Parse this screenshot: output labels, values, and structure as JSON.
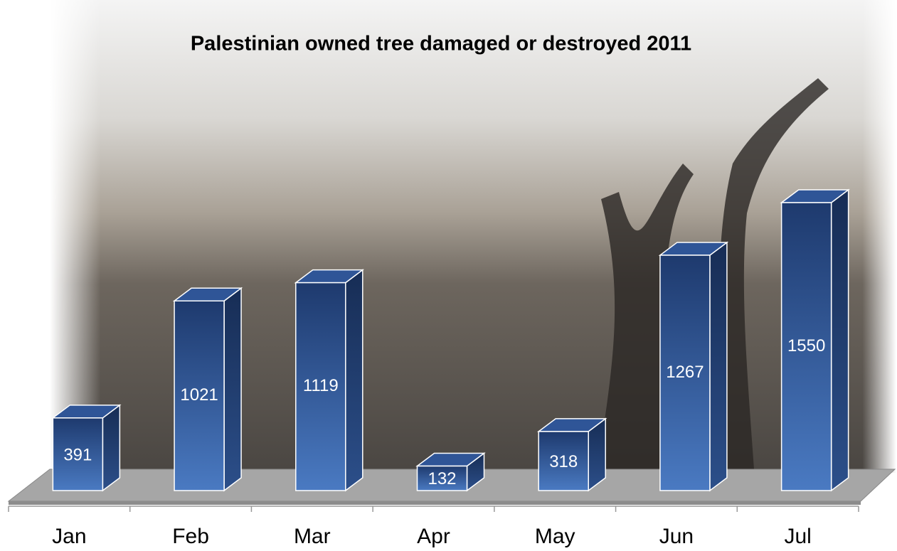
{
  "chart_data": {
    "type": "bar3d",
    "title": "Palestinian owned tree damaged or destroyed 2011",
    "categories": [
      "Jan",
      "Feb",
      "Mar",
      "Apr",
      "May",
      "Jun",
      "Jul"
    ],
    "values": [
      391,
      1021,
      1119,
      132,
      318,
      1267,
      1550
    ],
    "color": "#2f5597"
  }
}
